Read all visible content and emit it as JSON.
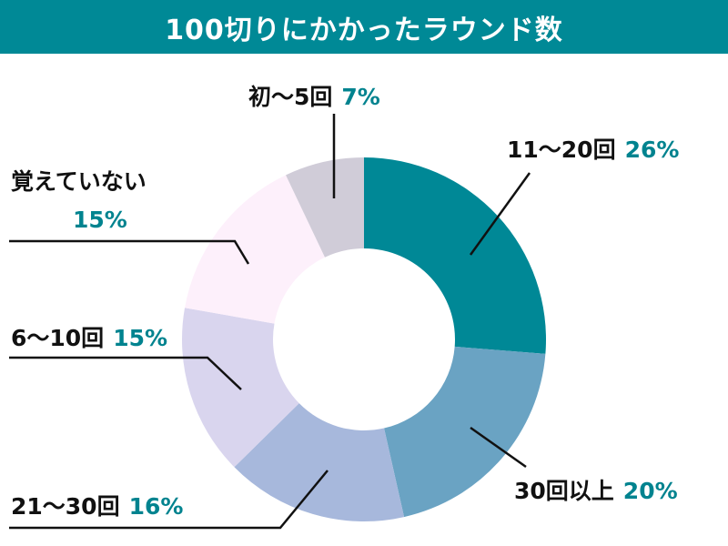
{
  "title": "100切りにかかったラウンド数",
  "chart_data": {
    "type": "pie",
    "donut": true,
    "title": "100切りにかかったラウンド数",
    "slices": [
      {
        "label": "11〜20回",
        "value": 26,
        "value_label": "26%",
        "color": "#008896"
      },
      {
        "label": "30回以上",
        "value": 20,
        "value_label": "20%",
        "color": "#6aa3c3"
      },
      {
        "label": "21〜30回",
        "value": 16,
        "value_label": "16%",
        "color": "#a7b8dc"
      },
      {
        "label": "6〜10回",
        "value": 15,
        "value_label": "15%",
        "color": "#d9d5ee"
      },
      {
        "label": "覚えていない",
        "value": 15,
        "value_label": "15%",
        "color": "#fdf0fb"
      },
      {
        "label": "初〜5回",
        "value": 7,
        "value_label": "7%",
        "color": "#d0ccd8"
      }
    ],
    "start": "top",
    "direction": "clockwise",
    "label_color": "#00838f"
  }
}
